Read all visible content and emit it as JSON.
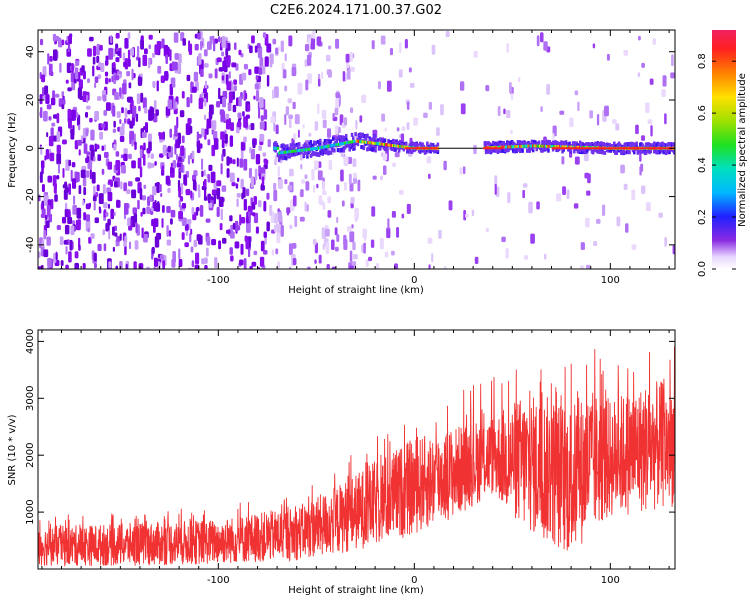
{
  "title": "C2E6.2024.171.00.37.G02",
  "chart_data": [
    {
      "type": "heatmap",
      "xlabel": "Height of straight line (km)",
      "ylabel": "Frequency (Hz)",
      "xlim": [
        -192,
        133
      ],
      "ylim": [
        -50,
        49
      ],
      "xticks": [
        -100,
        0,
        100
      ],
      "yticks": [
        -40,
        -20,
        0,
        20,
        40
      ],
      "colorbar": {
        "label": "Normalized spectral amplitude",
        "range": [
          0.0,
          0.92
        ],
        "ticks": [
          0.0,
          0.2,
          0.4,
          0.6,
          0.8
        ]
      },
      "description_track": [
        {
          "x": -70,
          "y": -2
        },
        {
          "x": -50,
          "y": 0
        },
        {
          "x": -30,
          "y": 3
        },
        {
          "x": -10,
          "y": 1
        },
        {
          "x": 0,
          "y": 0
        },
        {
          "x": 30,
          "y": 0
        },
        {
          "x": 60,
          "y": 1
        },
        {
          "x": 100,
          "y": 0
        },
        {
          "x": 133,
          "y": 0
        }
      ]
    },
    {
      "type": "line",
      "xlabel": "Height of straight line (km)",
      "ylabel": "SNR (10 * v/v)",
      "xlim": [
        -192,
        133
      ],
      "ylim": [
        0,
        4200
      ],
      "xticks": [
        -100,
        0,
        100
      ],
      "yticks": [
        1000,
        2000,
        3000,
        4000
      ],
      "series_color": "#f03232",
      "envelope": {
        "x": [
          -192,
          -150,
          -100,
          -60,
          -40,
          -20,
          0,
          20,
          40,
          55,
          70,
          80,
          90,
          100,
          120,
          133
        ],
        "upper": [
          750,
          800,
          880,
          1100,
          1450,
          1900,
          2300,
          2500,
          2700,
          3050,
          3050,
          2900,
          3150,
          3000,
          3300,
          3300
        ],
        "lower": [
          50,
          50,
          80,
          150,
          250,
          400,
          600,
          900,
          1300,
          700,
          400,
          200,
          600,
          900,
          1000,
          1100
        ]
      }
    }
  ]
}
